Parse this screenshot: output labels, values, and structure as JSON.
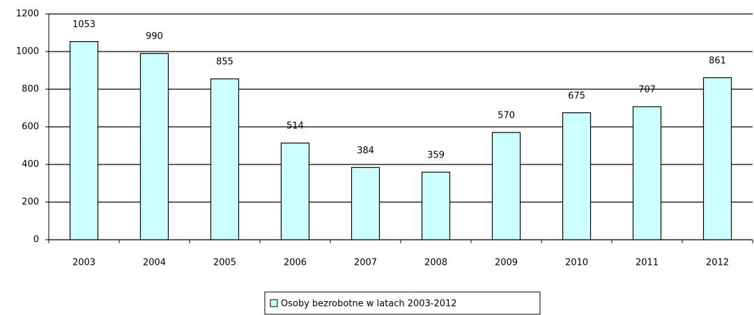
{
  "chart_data": {
    "type": "bar",
    "categories": [
      "2003",
      "2004",
      "2005",
      "2006",
      "2007",
      "2008",
      "2009",
      "2010",
      "2011",
      "2012"
    ],
    "series": [
      {
        "name": "Osoby bezrobotne w latach 2003-2012",
        "color": "#ccffff",
        "values": [
          1053,
          990,
          855,
          514,
          384,
          359,
          570,
          675,
          707,
          861
        ]
      }
    ],
    "ylim": [
      0,
      1200
    ],
    "yticks": [
      0,
      200,
      400,
      600,
      800,
      1000,
      1200
    ],
    "grid": true,
    "legend": "bottom"
  }
}
